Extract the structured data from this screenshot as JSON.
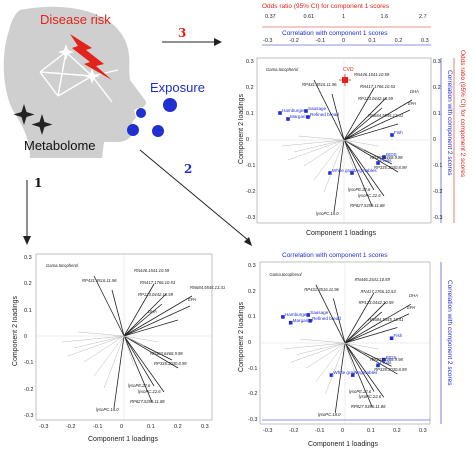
{
  "colors": {
    "red": "#e2231a",
    "blue": "#1f2fd0",
    "dark": "#222222",
    "grey": "#999999",
    "light_grey": "#bbbbbb"
  },
  "head": {
    "disease_label": "Disease risk",
    "metabolome_label": "Metabolome",
    "exposure_label": "Exposure"
  },
  "arrows": {
    "step1": "1",
    "step2": "2",
    "step3": "3"
  },
  "plot_top_right": {
    "odds_ratio_label_top": "Odds ratio (95% CI) for component 1 scores",
    "odds_ratio_ticks_top": [
      "0.37",
      "0.61",
      "1",
      "1.6",
      "2.7"
    ],
    "corr_label_top": "Correlation with component 1 scores",
    "corr_ticks_top": [
      "-0.3",
      "-0.2",
      "-0.1",
      "0",
      "0.1",
      "0.2",
      "0.3"
    ],
    "corr_label_right": "Correlation with component 2 scores",
    "corr_ticks_right": [
      "0.3",
      "0.2",
      "0.1",
      "0",
      "-0.1",
      "-0.2",
      "-0.3"
    ],
    "odds_ratio_label_right": "Odds ratio (95% CI) for component 2 scores",
    "odds_ratio_ticks_right": [
      "2.7",
      "1.6",
      "1",
      "0.61",
      "0.37"
    ],
    "xlabel": "Component 1 loadings",
    "ylabel": "Component 2 loadings",
    "y_ticks": [
      "0.3",
      "0.2",
      "0.1",
      "0",
      "-0.1",
      "-0.2",
      "-0.3"
    ],
    "metabolites": [
      "Gama.tocopherol",
      "RN446.1541.10.59",
      "RP431.3516.11.96",
      "RN417.1766.10.53",
      "RP123.0442.10.59",
      "RN684.5545.13.41",
      "DHA",
      "EPA",
      "RP303.6468.9.98",
      "RP335.3030.8.99",
      "lysoPE.22.6",
      "lysoPC.22.6",
      "RP827.5356.11.88",
      "lysoPC.18.0"
    ],
    "foods": [
      "Hamburger",
      "Sausage",
      "Refined bread",
      "Margarine",
      "Fish",
      "Vegetables",
      "White grain",
      "Fruits",
      "BIDS"
    ],
    "disease_point": "CVD"
  },
  "plot_bottom_left": {
    "xlabel": "Component 1 loadings",
    "ylabel": "Component 2 loadings",
    "x_ticks": [
      "-0.3",
      "-0.2",
      "-0.1",
      "0",
      "0.1",
      "0.2",
      "0.3"
    ],
    "y_ticks": [
      "0.3",
      "0.2",
      "0.1",
      "0",
      "-0.1",
      "-0.2",
      "-0.3"
    ],
    "metabolites": [
      "Gama.tocopherol",
      "RN446.1541.10.59",
      "RP431.3516.11.96",
      "RN417.1766.10.53",
      "RP123.0442.10.59",
      "DHA",
      "RN684.5545.13.41",
      "EPA",
      "RP303.6468.9.98",
      "RP335.3030.8.99",
      "lysoPE.22.6",
      "lysoPC.22.6",
      "RP827.5356.11.88",
      "lysoPC.18.0"
    ]
  },
  "plot_bottom_right": {
    "corr_label_right": "Correlation with component 2 scores",
    "corr_label_bottom": "Correlation with component 1 scores",
    "xlabel": "Component 1 loadings",
    "ylabel": "Component 2 loadings",
    "x_ticks": [
      "-0.3",
      "-0.2",
      "-0.1",
      "0",
      "0.1",
      "0.2",
      "0.3"
    ],
    "y_ticks": [
      "0.3",
      "0.2",
      "0.1",
      "0",
      "-0.1",
      "-0.2",
      "-0.3"
    ],
    "metabolites": [
      "Gama.tocopherol",
      "RN446.1541.10.59",
      "RP431.3516.11.96",
      "RN417.1766.10.53",
      "RP123.0442.10.59",
      "RN684.5545.13.41",
      "DHA",
      "EPA",
      "RP303.6468.9.98",
      "RP335.3030.8.99",
      "lysoPE.22.6",
      "lysoPC.22.6",
      "RP827.5356.11.88",
      "lysoPC.18.0"
    ],
    "foods": [
      "Hamburger",
      "Sausage",
      "Refined bread",
      "Margarine",
      "Fish",
      "Vegetables",
      "White grain",
      "Fruits",
      "BIDS"
    ]
  }
}
